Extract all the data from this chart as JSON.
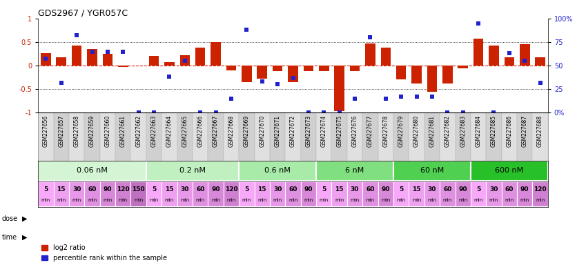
{
  "title": "GDS2967 / YGR057C",
  "samples": [
    "GSM227656",
    "GSM227657",
    "GSM227658",
    "GSM227659",
    "GSM227660",
    "GSM227661",
    "GSM227662",
    "GSM227663",
    "GSM227664",
    "GSM227665",
    "GSM227666",
    "GSM227667",
    "GSM227668",
    "GSM227669",
    "GSM227670",
    "GSM227671",
    "GSM227672",
    "GSM227673",
    "GSM227674",
    "GSM227675",
    "GSM227676",
    "GSM227677",
    "GSM227678",
    "GSM227679",
    "GSM227680",
    "GSM227681",
    "GSM227682",
    "GSM227683",
    "GSM227684",
    "GSM227685",
    "GSM227686",
    "GSM227687",
    "GSM227688"
  ],
  "log2_ratio": [
    0.27,
    0.18,
    0.42,
    0.36,
    0.25,
    -0.03,
    0.0,
    0.21,
    0.07,
    0.22,
    0.38,
    0.5,
    -0.1,
    -0.35,
    -0.28,
    -0.12,
    -0.35,
    -0.12,
    -0.12,
    -0.97,
    -0.12,
    0.47,
    0.38,
    -0.3,
    -0.38,
    -0.55,
    -0.38,
    -0.06,
    0.58,
    0.42,
    0.18,
    0.45,
    0.18
  ],
  "percentile": [
    57,
    32,
    82,
    65,
    65,
    65,
    0,
    0,
    38,
    55,
    0,
    0,
    15,
    88,
    33,
    30,
    37,
    0,
    0,
    0,
    15,
    80,
    15,
    17,
    17,
    17,
    0,
    0,
    95,
    0,
    63,
    55,
    32
  ],
  "doses": [
    "0.06 nM",
    "0.2 nM",
    "0.6 nM",
    "6 nM",
    "60 nM",
    "600 nM"
  ],
  "dose_counts": [
    7,
    6,
    5,
    5,
    5,
    5
  ],
  "dose_colors": [
    "#d4f5d4",
    "#c0f0c0",
    "#a8eaa8",
    "#80e080",
    "#50d050",
    "#28c028"
  ],
  "time_labels_flat": [
    "5",
    "15",
    "30",
    "60",
    "90",
    "120",
    "150",
    "5",
    "15",
    "30",
    "60",
    "90",
    "120",
    "5",
    "15",
    "30",
    "60",
    "90",
    "5",
    "15",
    "30",
    "60",
    "90",
    "5",
    "15",
    "30",
    "60",
    "90",
    "5",
    "30",
    "60",
    "90",
    "120"
  ],
  "time_colors_flat": [
    "#f8a8f8",
    "#f0a0f0",
    "#e898e8",
    "#e090e0",
    "#d888d8",
    "#d080d0",
    "#c070c0",
    "#f8a8f8",
    "#f0a0f0",
    "#e898e8",
    "#e090e0",
    "#d888d8",
    "#d080d0",
    "#f8a8f8",
    "#f0a0f0",
    "#e898e8",
    "#e090e0",
    "#d888d8",
    "#f8a8f8",
    "#f0a0f0",
    "#e898e8",
    "#e090e0",
    "#d888d8",
    "#f8a8f8",
    "#f0a0f0",
    "#e898e8",
    "#e090e0",
    "#d888d8",
    "#f8a8f8",
    "#e898e8",
    "#e090e0",
    "#d888d8",
    "#d080d0"
  ],
  "bar_color": "#cc2200",
  "dot_color": "#2222cc",
  "hline_color": "#cc2200",
  "ylim": [
    -1.0,
    1.0
  ],
  "yticks_left": [
    -1.0,
    -0.5,
    0.0,
    0.5,
    1.0
  ],
  "ytick_labels_left": [
    "-1",
    "-0.5",
    "0",
    "0.5",
    "1"
  ],
  "right_ytick_pos": [
    -1.0,
    -0.5,
    0.0,
    0.5,
    1.0
  ],
  "right_yticklabels": [
    "0%",
    "25",
    "50",
    "75",
    "100%"
  ],
  "title_fontsize": 9,
  "tick_fontsize": 7,
  "sample_fontsize": 5.5,
  "dose_fontsize": 8,
  "time_fontsize": 6.5
}
